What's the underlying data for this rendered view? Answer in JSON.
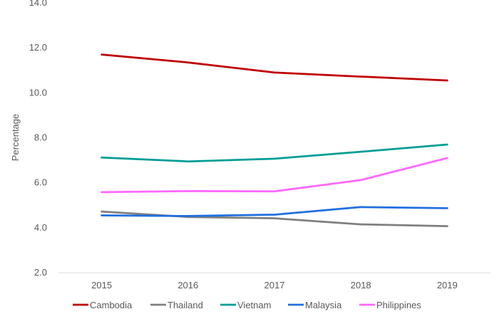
{
  "chart_data": {
    "type": "line",
    "title": "",
    "xlabel": "",
    "ylabel": "Percentage",
    "categories": [
      "2015",
      "2016",
      "2017",
      "2018",
      "2019"
    ],
    "ylim": [
      2.0,
      14.0
    ],
    "yticks": [
      "2.0",
      "4.0",
      "6.0",
      "8.0",
      "10.0",
      "12.0",
      "14.0"
    ],
    "grid": false,
    "legend_position": "bottom",
    "series": [
      {
        "name": "Cambodia",
        "color": "#C00000",
        "values": [
          11.7,
          11.35,
          10.9,
          10.72,
          10.55
        ]
      },
      {
        "name": "Thailand",
        "color": "#7F7F7F",
        "values": [
          4.72,
          4.48,
          4.42,
          4.15,
          4.07
        ]
      },
      {
        "name": "Vietnam",
        "color": "#009E96",
        "values": [
          7.12,
          6.95,
          7.07,
          7.38,
          7.7
        ]
      },
      {
        "name": "Malaysia",
        "color": "#1F6FE0",
        "values": [
          4.55,
          4.52,
          4.58,
          4.92,
          4.87
        ]
      },
      {
        "name": "Philippines",
        "color": "#FF66FF",
        "values": [
          5.58,
          5.63,
          5.62,
          6.12,
          7.1
        ]
      }
    ]
  }
}
